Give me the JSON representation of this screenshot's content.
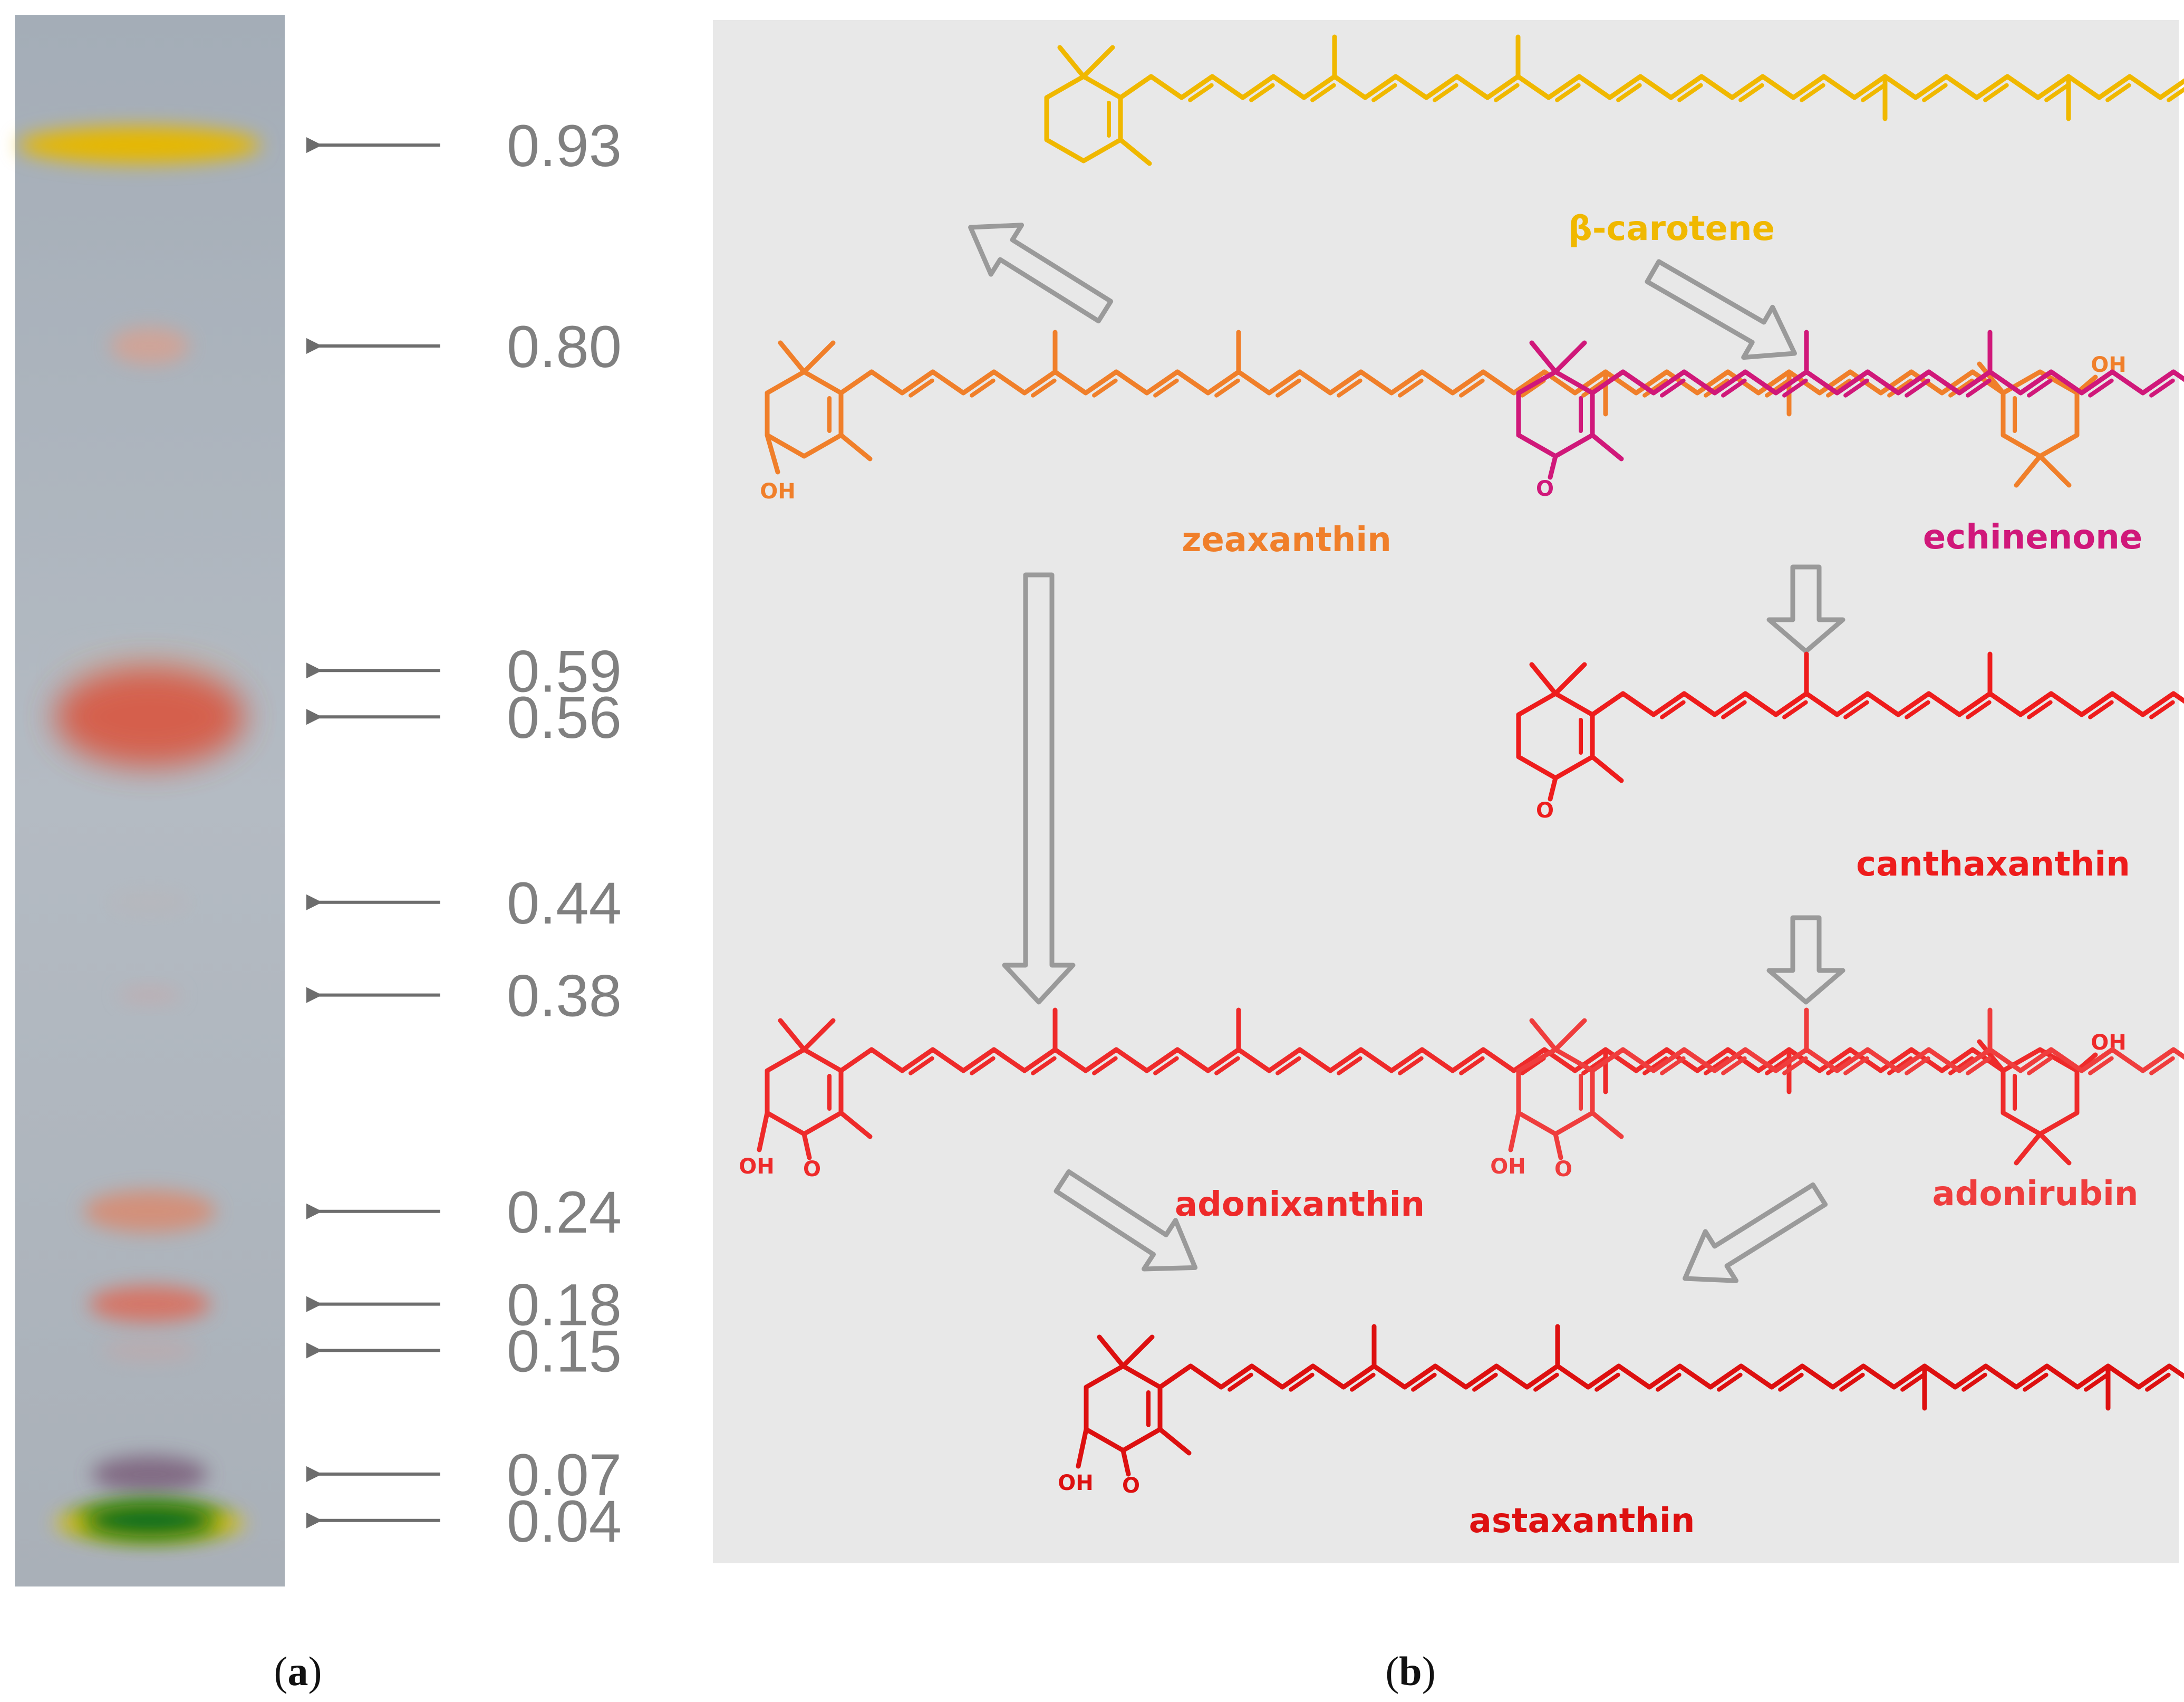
{
  "panel_a": {
    "label_open": "(",
    "label_letter": "a",
    "label_close": ")",
    "rf_values": [
      "0.93",
      "0.80",
      "0.59",
      "0.56",
      "0.44",
      "0.38",
      "0.24",
      "0.18",
      "0.15",
      "0.07",
      "0.04"
    ],
    "band_colors": {
      "0.93": "#e6b800",
      "0.80": "#d9a08f",
      "0.59": "#c8c0a8",
      "0.56": "#d9573f",
      "0.44": "#c0b2b0",
      "0.38": "#c9a6a6",
      "0.24": "#d98a6f",
      "0.18": "#d9705f",
      "0.15": "#caa2a0",
      "0.07": "#7a5e7a",
      "0.04": "#1a7a20"
    }
  },
  "panel_b": {
    "label_open": "(",
    "label_letter": "b",
    "label_close": ")",
    "compounds": [
      {
        "id": "beta-carotene",
        "name": "β-carotene",
        "color": "#f0b800"
      },
      {
        "id": "zeaxanthin",
        "name": "zeaxanthin",
        "color": "#f07f2a"
      },
      {
        "id": "echinenone",
        "name": "echinenone",
        "color": "#d0187a"
      },
      {
        "id": "canthaxanthin",
        "name": "canthaxanthin",
        "color": "#ee1c1c"
      },
      {
        "id": "adonixanthin",
        "name": "adonixanthin",
        "color": "#ee2a2a"
      },
      {
        "id": "adonirubin",
        "name": "adonirubin",
        "color": "#ef3d3d"
      },
      {
        "id": "astaxanthin",
        "name": "astaxanthin",
        "color": "#dd1010"
      }
    ],
    "atom_labels": {
      "oh": "OH",
      "o": "O"
    }
  }
}
